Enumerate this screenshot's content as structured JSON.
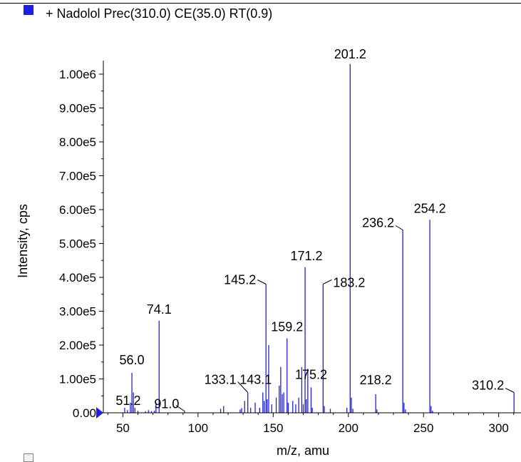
{
  "legend": {
    "label": "+ Nadolol Prec(310.0) CE(35.0) RT(0.9)",
    "swatch_color": "#1f1fe0"
  },
  "chart_data": {
    "type": "bar",
    "title": "",
    "xlabel": "m/z, amu",
    "ylabel": "Intensity, cps",
    "xlim": [
      37,
      312
    ],
    "ylim": [
      0,
      1040000
    ],
    "x_ticks": [
      50,
      100,
      150,
      200,
      250,
      300
    ],
    "y_ticks": [
      0,
      100000,
      200000,
      300000,
      400000,
      500000,
      600000,
      700000,
      800000,
      900000,
      1000000
    ],
    "y_tick_labels": [
      "0.00",
      "1.00e5",
      "2.00e5",
      "3.00e5",
      "4.00e5",
      "5.00e5",
      "6.00e5",
      "7.00e5",
      "8.00e5",
      "9.00e5",
      "1.00e6"
    ],
    "series_color": "#1f1fe0",
    "peaks": [
      {
        "mz": 51.2,
        "intensity": 15000,
        "label": "51.2"
      },
      {
        "mz": 53.0,
        "intensity": 8000
      },
      {
        "mz": 55.0,
        "intensity": 30000
      },
      {
        "mz": 56.0,
        "intensity": 118000,
        "label": "56.0"
      },
      {
        "mz": 57.0,
        "intensity": 60000
      },
      {
        "mz": 58.0,
        "intensity": 15000
      },
      {
        "mz": 60.0,
        "intensity": 6000
      },
      {
        "mz": 65.0,
        "intensity": 5000
      },
      {
        "mz": 67.0,
        "intensity": 8000
      },
      {
        "mz": 69.0,
        "intensity": 5000
      },
      {
        "mz": 71.0,
        "intensity": 6000
      },
      {
        "mz": 72.0,
        "intensity": 30000
      },
      {
        "mz": 74.1,
        "intensity": 272000,
        "label": "74.1"
      },
      {
        "mz": 91.0,
        "intensity": 5000,
        "label": "91.0"
      },
      {
        "mz": 115.0,
        "intensity": 12000
      },
      {
        "mz": 117.0,
        "intensity": 20000
      },
      {
        "mz": 128.0,
        "intensity": 10000
      },
      {
        "mz": 129.0,
        "intensity": 14000
      },
      {
        "mz": 131.0,
        "intensity": 35000
      },
      {
        "mz": 133.1,
        "intensity": 60000,
        "label": "133.1"
      },
      {
        "mz": 135.0,
        "intensity": 15000
      },
      {
        "mz": 138.0,
        "intensity": 30000
      },
      {
        "mz": 141.0,
        "intensity": 15000
      },
      {
        "mz": 143.1,
        "intensity": 60000,
        "label": "143.1"
      },
      {
        "mz": 144.0,
        "intensity": 35000
      },
      {
        "mz": 145.2,
        "intensity": 380000,
        "label": "145.2"
      },
      {
        "mz": 146.0,
        "intensity": 40000
      },
      {
        "mz": 147.0,
        "intensity": 200000
      },
      {
        "mz": 149.0,
        "intensity": 25000
      },
      {
        "mz": 152.0,
        "intensity": 45000
      },
      {
        "mz": 154.0,
        "intensity": 80000
      },
      {
        "mz": 155.0,
        "intensity": 135000
      },
      {
        "mz": 156.0,
        "intensity": 55000
      },
      {
        "mz": 157.0,
        "intensity": 60000
      },
      {
        "mz": 159.2,
        "intensity": 220000,
        "label": "159.2"
      },
      {
        "mz": 160.0,
        "intensity": 30000
      },
      {
        "mz": 163.0,
        "intensity": 35000
      },
      {
        "mz": 165.0,
        "intensity": 25000
      },
      {
        "mz": 167.0,
        "intensity": 45000
      },
      {
        "mz": 169.0,
        "intensity": 135000
      },
      {
        "mz": 170.0,
        "intensity": 25000
      },
      {
        "mz": 171.2,
        "intensity": 430000,
        "label": "171.2"
      },
      {
        "mz": 172.0,
        "intensity": 40000
      },
      {
        "mz": 173.0,
        "intensity": 130000
      },
      {
        "mz": 175.2,
        "intensity": 75000,
        "label": "175.2"
      },
      {
        "mz": 176.0,
        "intensity": 15000
      },
      {
        "mz": 183.2,
        "intensity": 380000,
        "label": "183.2"
      },
      {
        "mz": 184.0,
        "intensity": 20000
      },
      {
        "mz": 188.0,
        "intensity": 12000
      },
      {
        "mz": 199.0,
        "intensity": 15000
      },
      {
        "mz": 201.2,
        "intensity": 1030000,
        "label": "201.2"
      },
      {
        "mz": 202.0,
        "intensity": 45000
      },
      {
        "mz": 203.0,
        "intensity": 12000
      },
      {
        "mz": 218.2,
        "intensity": 55000,
        "label": "218.2"
      },
      {
        "mz": 219.0,
        "intensity": 10000
      },
      {
        "mz": 236.2,
        "intensity": 540000,
        "label": "236.2"
      },
      {
        "mz": 237.0,
        "intensity": 30000
      },
      {
        "mz": 238.0,
        "intensity": 10000
      },
      {
        "mz": 254.2,
        "intensity": 570000,
        "label": "254.2"
      },
      {
        "mz": 255.0,
        "intensity": 20000
      },
      {
        "mz": 256.0,
        "intensity": 6000
      },
      {
        "mz": 310.2,
        "intensity": 60000,
        "label": "310.2"
      }
    ]
  }
}
